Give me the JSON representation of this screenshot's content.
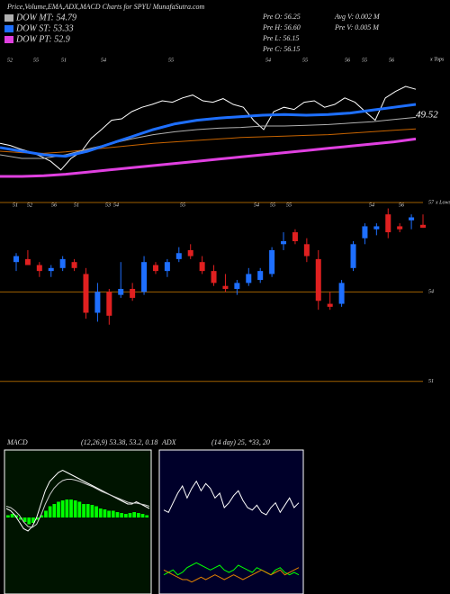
{
  "chart_data": [
    {
      "type": "line",
      "title": "Price,Volume,EMA,ADX,MACD Charts for SPYU MunafaSutra.com",
      "stats": [
        "Pre O: 56.25",
        "Pre H: 56.60",
        "Pre L: 56.15",
        "Pre C: 56.15",
        "Avg V: 0.002  M",
        "Pre V: 0.005 M"
      ],
      "x_labels": [
        "52",
        "55",
        "51",
        "54",
        "55",
        "54",
        "55",
        "56",
        "55",
        "56"
      ],
      "right_label": "x Tops",
      "last_value": 49.52,
      "ylim": [
        38,
        58
      ],
      "series": [
        {
          "color": "#ffffff",
          "values": [
            45.6,
            45.3,
            44.8,
            44.4,
            43.8,
            43.1,
            41.9,
            43.5,
            44.4,
            46.3,
            47.5,
            48.8,
            49,
            50,
            50.6,
            51,
            51.5,
            51.3,
            51.9,
            52.3,
            51.5,
            51.3,
            51.8,
            51,
            50.6,
            48.8,
            47.5,
            50,
            50.6,
            50.3,
            51.3,
            51.5,
            50.6,
            51,
            51.9,
            51.3,
            50,
            48.8,
            51.9,
            52.8,
            53.5,
            53.1
          ]
        },
        {
          "color": "#c86400",
          "values": [
            44.5,
            44.3,
            44.2,
            44.4,
            44.7,
            45,
            45.3,
            45.6,
            45.8,
            46,
            46.2,
            46.4,
            46.5,
            46.6,
            46.7,
            46.8,
            47,
            47.2,
            47.4,
            47.6
          ]
        },
        {
          "name": "DOW MT: 54.79",
          "color": "#b0b0b0",
          "values": [
            44,
            43.5,
            43.5,
            44,
            44.8,
            45.5,
            46.2,
            46.8,
            47.2,
            47.5,
            47.7,
            47.8,
            48,
            48,
            48.1,
            48.2,
            48.4,
            48.6,
            48.9,
            49.2
          ]
        },
        {
          "name": "DOW ST: 53.33",
          "color": "#1e6fff",
          "values": [
            45,
            44.5,
            44,
            43.8,
            44.5,
            45.5,
            46.5,
            47.5,
            48.3,
            48.8,
            49.1,
            49.3,
            49.5,
            49.6,
            49.5,
            49.6,
            49.8,
            50.2,
            50.6,
            51
          ]
        },
        {
          "name": "DOW PT: 52.9",
          "color": "#e040e0",
          "values": [
            41,
            41,
            41.1,
            41.3,
            41.6,
            41.9,
            42.2,
            42.5,
            42.8,
            43.1,
            43.4,
            43.7,
            44,
            44.3,
            44.6,
            44.9,
            45.2,
            45.5,
            45.8,
            46.2
          ]
        }
      ]
    },
    {
      "type": "candlestick",
      "x_labels": [
        "51",
        "52",
        "56",
        "51",
        "53",
        "54",
        "55",
        "54",
        "55",
        "55",
        "54",
        "56"
      ],
      "right_label": "x Lows",
      "ylim": [
        49.3,
        57.3
      ],
      "yticks": [
        57,
        54,
        51
      ],
      "up_color": "#1e6fff",
      "down_color": "#e02020",
      "candles": [
        {
          "open": 55.0,
          "high": 55.3,
          "low": 54.7,
          "close": 55.2
        },
        {
          "open": 55.1,
          "high": 55.4,
          "low": 54.9,
          "close": 54.9
        },
        {
          "open": 54.9,
          "high": 55.0,
          "low": 54.5,
          "close": 54.7
        },
        {
          "open": 54.7,
          "high": 54.9,
          "low": 54.5,
          "close": 54.8
        },
        {
          "open": 54.8,
          "high": 55.2,
          "low": 54.7,
          "close": 55.1
        },
        {
          "open": 55.0,
          "high": 55.1,
          "low": 54.7,
          "close": 54.8
        },
        {
          "open": 54.6,
          "high": 54.8,
          "low": 53.1,
          "close": 53.3
        },
        {
          "open": 53.3,
          "high": 54.3,
          "low": 53.0,
          "close": 54.0
        },
        {
          "open": 54.0,
          "high": 54.1,
          "low": 52.9,
          "close": 53.2
        },
        {
          "open": 53.9,
          "high": 55.0,
          "low": 53.8,
          "close": 54.1
        },
        {
          "open": 54.1,
          "high": 54.3,
          "low": 53.7,
          "close": 53.8
        },
        {
          "open": 54.0,
          "high": 55.2,
          "low": 53.9,
          "close": 55.0
        },
        {
          "open": 54.9,
          "high": 55.0,
          "low": 54.6,
          "close": 54.7
        },
        {
          "open": 54.7,
          "high": 55.1,
          "low": 54.5,
          "close": 55.0
        },
        {
          "open": 55.1,
          "high": 55.5,
          "low": 55.0,
          "close": 55.3
        },
        {
          "open": 55.4,
          "high": 55.6,
          "low": 55.1,
          "close": 55.2
        },
        {
          "open": 55.0,
          "high": 55.2,
          "low": 54.6,
          "close": 54.7
        },
        {
          "open": 54.7,
          "high": 54.9,
          "low": 54.2,
          "close": 54.3
        },
        {
          "open": 54.2,
          "high": 54.6,
          "low": 54.0,
          "close": 54.1
        },
        {
          "open": 54.1,
          "high": 54.4,
          "low": 53.9,
          "close": 54.3
        },
        {
          "open": 54.3,
          "high": 54.8,
          "low": 54.2,
          "close": 54.6
        },
        {
          "open": 54.4,
          "high": 54.8,
          "low": 54.3,
          "close": 54.7
        },
        {
          "open": 54.6,
          "high": 55.5,
          "low": 54.5,
          "close": 55.4
        },
        {
          "open": 55.6,
          "high": 56.0,
          "low": 55.4,
          "close": 55.7
        },
        {
          "open": 56.0,
          "high": 56.1,
          "low": 55.6,
          "close": 55.7
        },
        {
          "open": 55.6,
          "high": 55.8,
          "low": 55.0,
          "close": 55.2
        },
        {
          "open": 55.1,
          "high": 55.4,
          "low": 53.4,
          "close": 53.7
        },
        {
          "open": 53.6,
          "high": 54.0,
          "low": 53.4,
          "close": 53.5
        },
        {
          "open": 53.6,
          "high": 54.4,
          "low": 53.5,
          "close": 54.3
        },
        {
          "open": 54.8,
          "high": 55.7,
          "low": 54.7,
          "close": 55.6
        },
        {
          "open": 55.8,
          "high": 56.3,
          "low": 55.6,
          "close": 56.2
        },
        {
          "open": 56.1,
          "high": 56.3,
          "low": 55.9,
          "close": 56.2
        },
        {
          "open": 56.6,
          "high": 56.8,
          "low": 55.8,
          "close": 56.0
        },
        {
          "open": 56.2,
          "high": 56.3,
          "low": 56.0,
          "close": 56.1
        },
        {
          "open": 56.4,
          "high": 56.6,
          "low": 56.1,
          "close": 56.5
        },
        {
          "open": 56.25,
          "high": 56.6,
          "low": 56.15,
          "close": 56.15
        }
      ]
    },
    {
      "type": "macd",
      "title": "MACD",
      "subtitle": "(12,26,9) 53.38, 53.2, 0.18",
      "ylim": [
        -1.7,
        1.5
      ],
      "histogram_color": "#00ff00",
      "histogram": [
        0.05,
        0.08,
        0.05,
        -0.05,
        -0.1,
        -0.15,
        -0.12,
        -0.05,
        0.05,
        0.15,
        0.25,
        0.3,
        0.35,
        0.38,
        0.4,
        0.4,
        0.38,
        0.35,
        0.3,
        0.3,
        0.28,
        0.25,
        0.2,
        0.18,
        0.15,
        0.15,
        0.12,
        0.1,
        0.08,
        0.1,
        0.12,
        0.1,
        0.08,
        0.05
      ],
      "series": [
        {
          "color": "#ffffff",
          "values": [
            0.2,
            0.15,
            0.05,
            -0.1,
            -0.25,
            -0.3,
            -0.2,
            0,
            0.3,
            0.6,
            0.8,
            0.9,
            1.0,
            1.05,
            1.0,
            0.95,
            0.9,
            0.85,
            0.8,
            0.75,
            0.7,
            0.65,
            0.6,
            0.55,
            0.5,
            0.45,
            0.4,
            0.35,
            0.3,
            0.3,
            0.35,
            0.3,
            0.25,
            0.2
          ]
        },
        {
          "color": "#cccccc",
          "values": [
            0.25,
            0.22,
            0.15,
            0.05,
            -0.1,
            -0.2,
            -0.22,
            -0.15,
            0.05,
            0.3,
            0.5,
            0.65,
            0.75,
            0.82,
            0.85,
            0.85,
            0.83,
            0.8,
            0.76,
            0.72,
            0.68,
            0.63,
            0.58,
            0.54,
            0.5,
            0.46,
            0.42,
            0.38,
            0.34,
            0.32,
            0.32,
            0.3,
            0.28,
            0.25
          ]
        }
      ]
    },
    {
      "type": "adx",
      "title": "ADX",
      "subtitle": "(14 day) 25, *33, 20",
      "ylim": [
        0,
        60
      ],
      "series": [
        {
          "color": "#ffffff",
          "values": [
            35,
            34,
            38,
            42,
            45,
            40,
            44,
            47,
            43,
            46,
            44,
            40,
            42,
            36,
            38,
            41,
            43,
            39,
            36,
            35,
            37,
            34,
            33,
            36,
            38,
            34,
            37,
            40,
            36,
            38
          ]
        },
        {
          "color": "#00ff00",
          "values": [
            8,
            9,
            10,
            8,
            9,
            11,
            12,
            13,
            12,
            11,
            10,
            11,
            12,
            10,
            9,
            10,
            12,
            11,
            10,
            9,
            11,
            10,
            9,
            8,
            10,
            11,
            9,
            8,
            9,
            8
          ]
        },
        {
          "color": "#e08000",
          "values": [
            10,
            9,
            8,
            7,
            6,
            6,
            5,
            6,
            7,
            6,
            7,
            8,
            7,
            6,
            7,
            8,
            7,
            6,
            7,
            8,
            9,
            10,
            9,
            8,
            9,
            10,
            8,
            9,
            10,
            11
          ]
        }
      ]
    }
  ]
}
